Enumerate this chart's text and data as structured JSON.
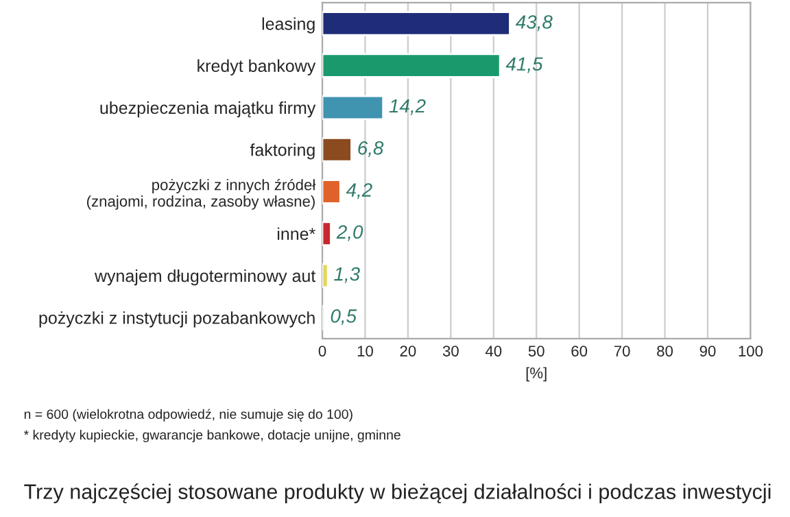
{
  "chart_data": {
    "type": "bar",
    "orientation": "horizontal",
    "categories": [
      "leasing",
      "kredyt bankowy",
      "ubezpieczenia majątku firmy",
      "faktoring",
      "pożyczki z innych źródeł\n(znajomi, rodzina, zasoby własne)",
      "inne*",
      "wynajem długoterminowy aut",
      "pożyczki z instytucji pozabankowych"
    ],
    "values": [
      43.8,
      41.5,
      14.2,
      6.8,
      4.2,
      2.0,
      1.3,
      0.5
    ],
    "value_labels": [
      "43,8",
      "41,5",
      "14,2",
      "6,8",
      "4,2",
      "2,0",
      "1,3",
      "0,5"
    ],
    "colors": [
      "#1f2c78",
      "#1a9a6c",
      "#4094b0",
      "#8b4a1f",
      "#e0622a",
      "#c8282d",
      "#e6d65a",
      "#b4bcc4"
    ],
    "xlim": [
      0,
      100
    ],
    "xticks": [
      0,
      10,
      20,
      30,
      40,
      50,
      60,
      70,
      80,
      90,
      100
    ],
    "xlabel": "[%]",
    "grid": "x",
    "annotations": [
      "n = 600 (wielokrotna odpowiedź, nie sumuje się do 100)",
      "* kredyty kupieckie, gwarancje bankowe, dotacje unijne, gminne",
      "Trzy najczęściej stosowane produkty w bieżącej działalności i podczas inwestycji"
    ]
  }
}
